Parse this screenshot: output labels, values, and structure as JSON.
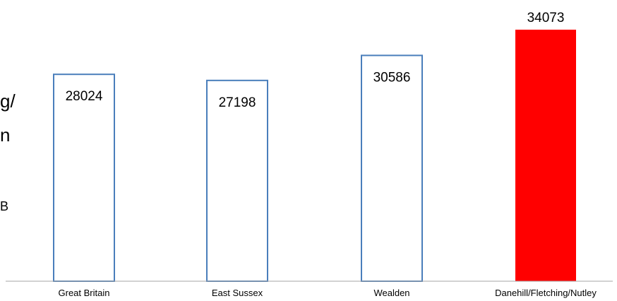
{
  "side_text": [
    "g/",
    "n",
    "B"
  ],
  "chart_data": {
    "type": "bar",
    "categories": [
      "Great Britain",
      "East Sussex",
      "Wealden",
      "Danehill/Fletching/Nutley"
    ],
    "values": [
      28024,
      27198,
      30586,
      34073
    ],
    "data_labels": [
      "28024",
      "27198",
      "30586",
      "34073"
    ],
    "highlight_index": 3,
    "ylim": [
      0,
      35000
    ],
    "grid": false,
    "legend": "none",
    "colors": {
      "bar_outline": "#4a7ebb",
      "bar_fill": "#ffffff",
      "highlight_fill": "#ff0000",
      "axis": "#a6a6a6",
      "text": "#000000"
    }
  }
}
